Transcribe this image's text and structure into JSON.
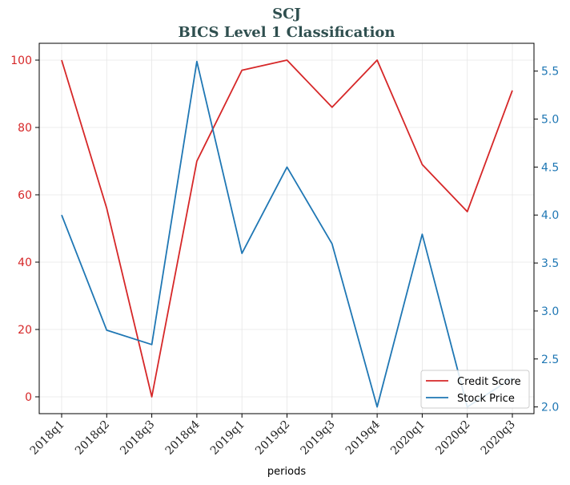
{
  "chart_data": {
    "type": "line",
    "title": "SCJ",
    "subtitle": "BICS Level 1 Classification",
    "xlabel": "periods",
    "categories": [
      "2018q1",
      "2018q2",
      "2018q3",
      "2018q4",
      "2019q1",
      "2019q2",
      "2019q3",
      "2019q4",
      "2020q1",
      "2020q2",
      "2020q3"
    ],
    "series": [
      {
        "name": "Credit Score",
        "axis": "left",
        "color": "#d62728",
        "values": [
          100,
          56,
          0,
          70,
          97,
          100,
          86,
          100,
          69,
          55,
          91
        ]
      },
      {
        "name": "Stock Price",
        "axis": "right",
        "color": "#1f77b4",
        "values": [
          4.0,
          2.8,
          2.65,
          5.6,
          3.6,
          4.5,
          3.7,
          2.0,
          3.8,
          2.0,
          2.3
        ]
      }
    ],
    "left_axis": {
      "ylim": [
        -5,
        105
      ],
      "ticks": [
        0,
        20,
        40,
        60,
        80,
        100
      ],
      "color": "#d62728"
    },
    "right_axis": {
      "ylim": [
        1.93,
        5.79
      ],
      "ticks": [
        2.0,
        2.5,
        3.0,
        3.5,
        4.0,
        4.5,
        5.0,
        5.5
      ],
      "color": "#1f77b4"
    },
    "grid": true,
    "legend_position": "lower-right"
  }
}
